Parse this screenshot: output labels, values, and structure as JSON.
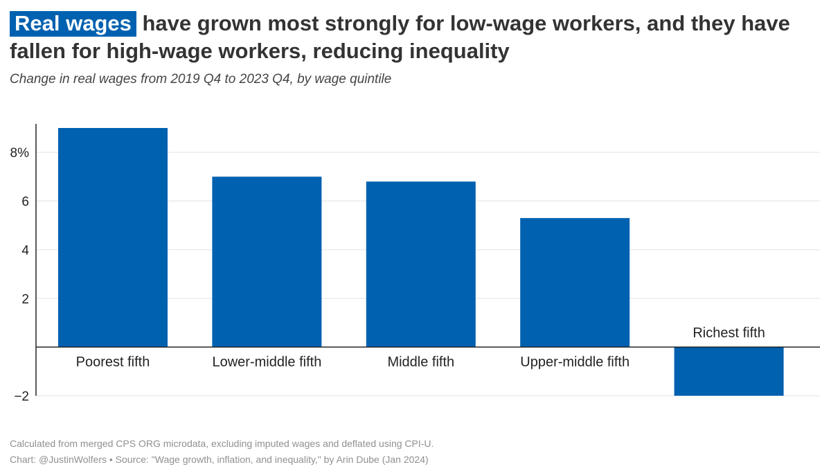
{
  "title": {
    "highlight": "Real wages",
    "rest": "have grown most strongly for low-wage workers, and they have fallen for high-wage workers, reducing inequality"
  },
  "subtitle": "Change in real wages from 2019 Q4 to 2023 Q4, by wage quintile",
  "footnotes": {
    "method": "Calculated from merged CPS ORG microdata, excluding imputed wages and deflated using CPI-U.",
    "credit": "Chart: @JustinWolfers • Source: \"Wage growth, inflation, and inequality,\" by Arin Dube (Jan 2024)"
  },
  "colors": {
    "bar": "#0061b0",
    "grid": "#e2e2e2",
    "axis": "#222222",
    "text": "#222222"
  },
  "chart_data": {
    "type": "bar",
    "categories": [
      "Poorest fifth",
      "Lower-middle fifth",
      "Middle fifth",
      "Upper-middle fifth",
      "Richest fifth"
    ],
    "values": [
      9.0,
      7.0,
      6.8,
      5.3,
      -2.0
    ],
    "ylim": [
      -2,
      9
    ],
    "yticks": [
      {
        "value": 8,
        "label": "8%"
      },
      {
        "value": 6,
        "label": "6"
      },
      {
        "value": 4,
        "label": "4"
      },
      {
        "value": 2,
        "label": "2"
      },
      {
        "value": -2,
        "label": "−2"
      }
    ],
    "xlabel": "",
    "ylabel": "",
    "grid": true,
    "legend": "none"
  }
}
